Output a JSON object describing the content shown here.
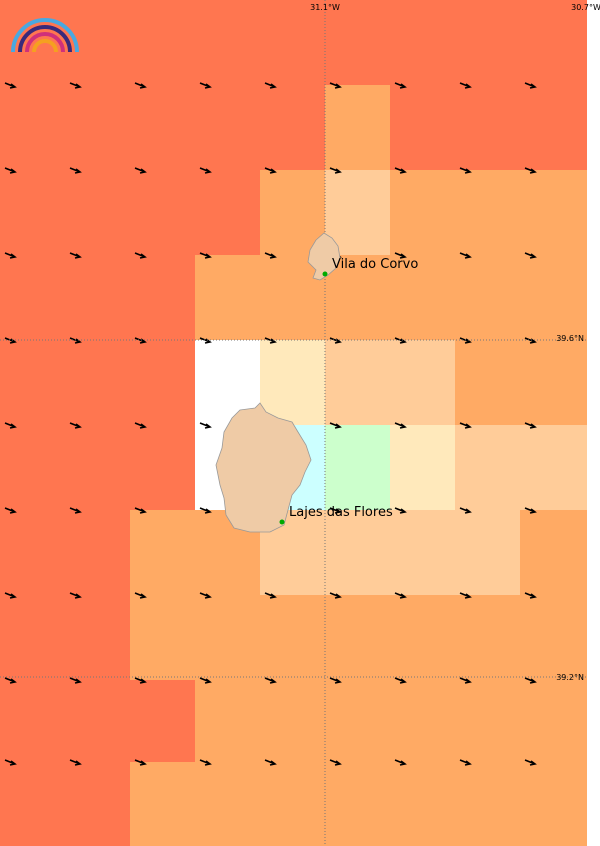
{
  "map": {
    "lon_labels": [
      "31.1°W",
      "30.7°W"
    ],
    "lat_labels": [
      "39.6°N",
      "39.2°N"
    ],
    "places": [
      {
        "name": "Vila do Corvo"
      },
      {
        "name": "Lajes das Flores"
      }
    ]
  }
}
